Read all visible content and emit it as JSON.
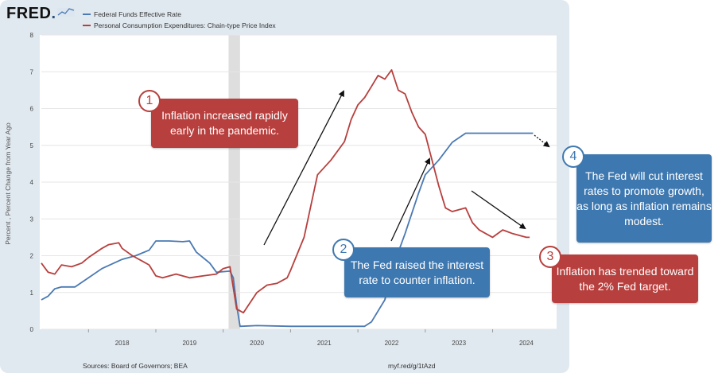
{
  "brand": {
    "logo_text": "FRED",
    "logo_dot": "."
  },
  "chart_data": {
    "type": "line",
    "title": "",
    "ylabel": "Percent , Percent Change from Year Ago",
    "xlabel": "",
    "ylim": [
      0,
      8
    ],
    "xlim": [
      2017.3,
      2024.95
    ],
    "yticks": [
      0,
      1,
      2,
      3,
      4,
      5,
      6,
      7,
      8
    ],
    "xticks": [
      2018,
      2019,
      2020,
      2021,
      2022,
      2023,
      2024
    ],
    "recession": [
      2020.08,
      2020.25
    ],
    "series": [
      {
        "name": "Federal Funds Effective Rate",
        "color": "#4a79b3",
        "x": [
          2017.3,
          2017.4,
          2017.5,
          2017.6,
          2017.8,
          2018.0,
          2018.2,
          2018.5,
          2018.7,
          2018.9,
          2019.0,
          2019.2,
          2019.4,
          2019.5,
          2019.6,
          2019.8,
          2019.9,
          2020.1,
          2020.15,
          2020.2,
          2020.25,
          2020.5,
          2021.0,
          2021.5,
          2021.8,
          2022.1,
          2022.2,
          2022.4,
          2022.5,
          2022.7,
          2022.9,
          2023.0,
          2023.2,
          2023.4,
          2023.6,
          2024.0,
          2024.6
        ],
        "values": [
          0.8,
          0.9,
          1.1,
          1.15,
          1.15,
          1.4,
          1.65,
          1.9,
          2.0,
          2.15,
          2.4,
          2.4,
          2.38,
          2.4,
          2.1,
          1.8,
          1.55,
          1.58,
          1.4,
          0.65,
          0.08,
          0.1,
          0.08,
          0.08,
          0.08,
          0.08,
          0.2,
          0.8,
          1.6,
          2.6,
          3.7,
          4.2,
          4.6,
          5.08,
          5.33,
          5.33,
          5.33
        ]
      },
      {
        "name": "Personal Consumption Expenditures: Chain-type Price Index",
        "color": "#b73f3d",
        "x": [
          2017.3,
          2017.4,
          2017.5,
          2017.6,
          2017.75,
          2017.9,
          2018.0,
          2018.2,
          2018.3,
          2018.45,
          2018.5,
          2018.65,
          2018.8,
          2018.9,
          2019.0,
          2019.1,
          2019.3,
          2019.5,
          2019.7,
          2019.9,
          2020.0,
          2020.1,
          2020.2,
          2020.3,
          2020.5,
          2020.65,
          2020.8,
          2020.95,
          2021.0,
          2021.2,
          2021.4,
          2021.6,
          2021.8,
          2021.9,
          2022.0,
          2022.1,
          2022.2,
          2022.3,
          2022.4,
          2022.5,
          2022.6,
          2022.7,
          2022.8,
          2022.9,
          2023.0,
          2023.1,
          2023.2,
          2023.3,
          2023.4,
          2023.6,
          2023.7,
          2023.8,
          2023.9,
          2024.0,
          2024.15,
          2024.3,
          2024.5,
          2024.55
        ],
        "values": [
          1.8,
          1.55,
          1.5,
          1.75,
          1.7,
          1.8,
          1.95,
          2.2,
          2.3,
          2.35,
          2.2,
          2.0,
          1.85,
          1.75,
          1.45,
          1.4,
          1.5,
          1.4,
          1.45,
          1.5,
          1.65,
          1.7,
          0.55,
          0.45,
          1.0,
          1.2,
          1.25,
          1.4,
          1.6,
          2.5,
          4.2,
          4.6,
          5.1,
          5.7,
          6.1,
          6.3,
          6.6,
          6.9,
          6.8,
          7.05,
          6.5,
          6.4,
          5.9,
          5.5,
          5.3,
          4.6,
          3.9,
          3.3,
          3.2,
          3.3,
          2.9,
          2.7,
          2.6,
          2.5,
          2.7,
          2.6,
          2.5,
          2.5
        ]
      }
    ]
  },
  "sources": {
    "left": "Sources: Board of Governors; BEA",
    "right": "myf.red/g/1tAzd"
  },
  "callouts": [
    {
      "number": "1",
      "text": "Inflation increased rapidly early in the pandemic."
    },
    {
      "number": "2",
      "text": "The Fed raised the interest rate to counter inflation."
    },
    {
      "number": "3",
      "text": "Inflation has trended toward the 2% Fed target."
    },
    {
      "number": "4",
      "text": "The Fed will cut interest rates to promote growth, as long as inflation remains modest."
    }
  ],
  "colors": {
    "red": "#b73f3d",
    "blue": "#3e78b0",
    "panel": "#e1e9f0"
  }
}
